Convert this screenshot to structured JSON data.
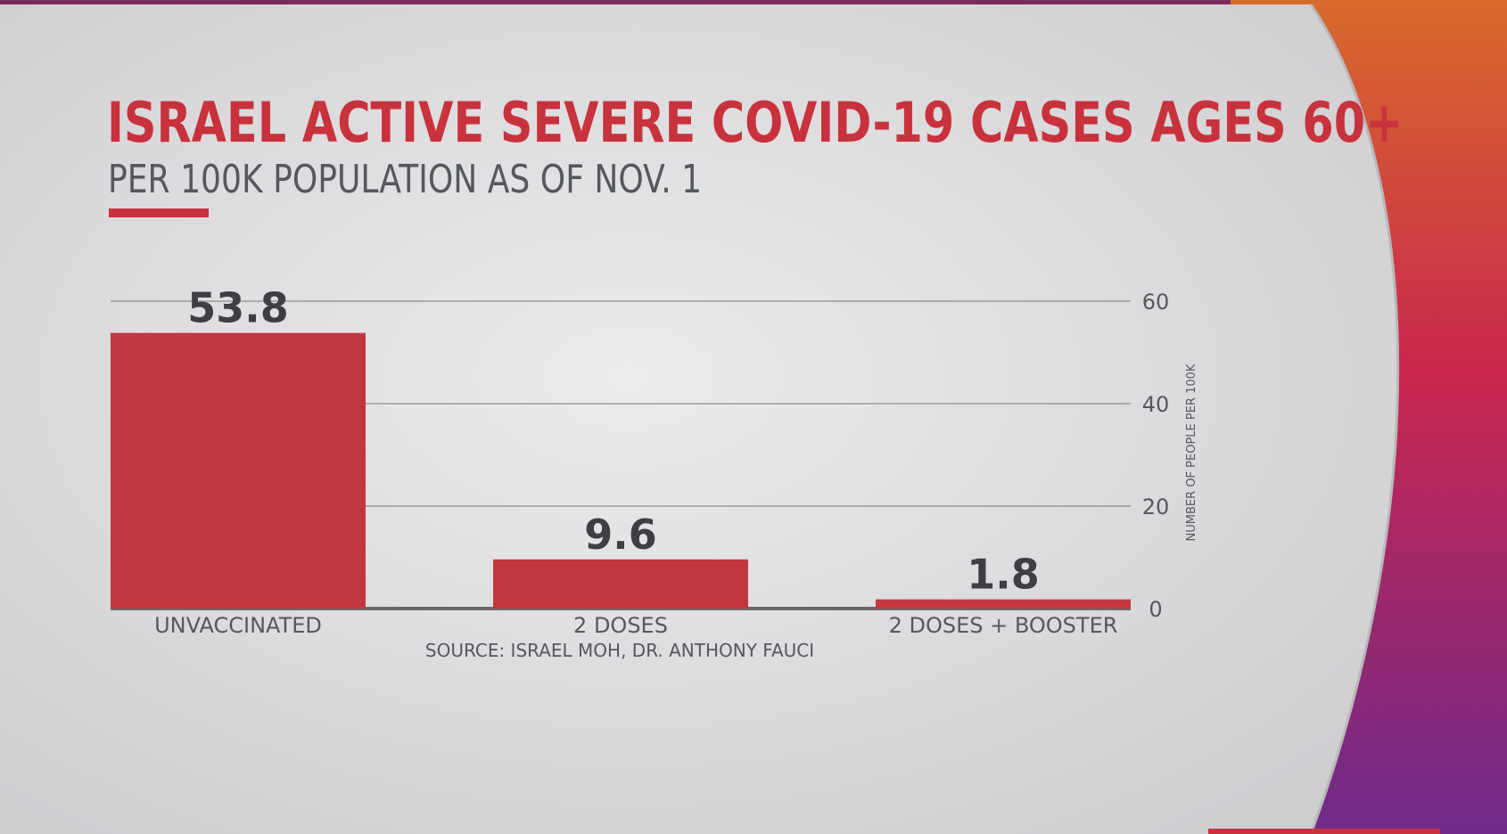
{
  "colors": {
    "accent": "#c8323d",
    "bar": "#c23840",
    "text_dark": "#3d3f43",
    "text_gray": "#55585c",
    "gridline": "#9a9a9c",
    "baseline": "#6a6a6c",
    "background": "#d6d4d6"
  },
  "chart_data": {
    "type": "bar",
    "title": "ISRAEL ACTIVE SEVERE COVID-19 CASES AGES 60+",
    "subtitle": "PER 100K POPULATION AS OF NOV. 1",
    "categories": [
      "UNVACCINATED",
      "2 DOSES",
      "2 DOSES + BOOSTER"
    ],
    "values": [
      53.8,
      9.6,
      1.8
    ],
    "value_labels": [
      "53.8",
      "9.6",
      "1.8"
    ],
    "ylabel": "NUMBER OF PEOPLE PER 100K",
    "ylim": [
      0,
      60
    ],
    "yticks": [
      0,
      20,
      40,
      60
    ],
    "ytick_labels": [
      "0",
      "20",
      "40",
      "60"
    ],
    "y_axis_side": "right",
    "grid": true,
    "source": "SOURCE: ISRAEL MOH, DR. ANTHONY FAUCI"
  }
}
